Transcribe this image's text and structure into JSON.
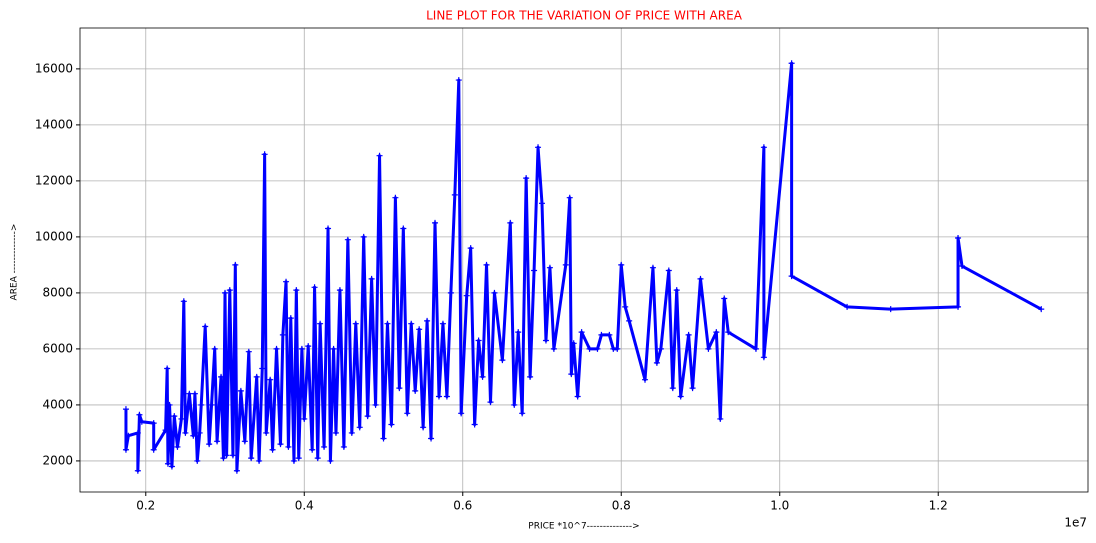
{
  "chart_data": {
    "type": "line",
    "title": "LINE PLOT FOR THE VARIATION OF PRICE WITH AREA",
    "xlabel": "PRICE *10^7-------------->",
    "ylabel": "AREA ------------->",
    "x_offset_label": "1e7",
    "color": "#0000ff",
    "title_color": "#ff0000",
    "grid": true,
    "xlim": [
      0.117,
      1.389
    ],
    "ylim": [
      890,
      17460
    ],
    "xticks": [
      0.2,
      0.4,
      0.6,
      0.8,
      {
        "value": 1,
        "label": "1.0"
      },
      1.2
    ],
    "yticks": [
      2000,
      4000,
      6000,
      8000,
      10000,
      12000,
      14000,
      16000
    ],
    "x": [
      0.175,
      0.175,
      0.178,
      0.19,
      0.19,
      0.192,
      0.195,
      0.21,
      0.21,
      0.225,
      0.227,
      0.228,
      0.23,
      0.233,
      0.236,
      0.24,
      0.245,
      0.248,
      0.25,
      0.255,
      0.26,
      0.262,
      0.265,
      0.268,
      0.27,
      0.275,
      0.28,
      0.283,
      0.287,
      0.29,
      0.295,
      0.298,
      0.3,
      0.302,
      0.306,
      0.31,
      0.313,
      0.315,
      0.32,
      0.325,
      0.33,
      0.333,
      0.34,
      0.343,
      0.347,
      0.35,
      0.352,
      0.357,
      0.36,
      0.365,
      0.37,
      0.373,
      0.377,
      0.38,
      0.383,
      0.387,
      0.39,
      0.393,
      0.397,
      0.4,
      0.405,
      0.41,
      0.413,
      0.417,
      0.42,
      0.425,
      0.43,
      0.433,
      0.437,
      0.44,
      0.445,
      0.45,
      0.455,
      0.46,
      0.465,
      0.47,
      0.475,
      0.48,
      0.485,
      0.49,
      0.495,
      0.5,
      0.505,
      0.51,
      0.515,
      0.52,
      0.525,
      0.53,
      0.535,
      0.54,
      0.545,
      0.55,
      0.555,
      0.56,
      0.565,
      0.57,
      0.575,
      0.58,
      0.585,
      0.59,
      0.595,
      0.598,
      0.605,
      0.61,
      0.615,
      0.62,
      0.625,
      0.63,
      0.635,
      0.64,
      0.65,
      0.66,
      0.665,
      0.67,
      0.675,
      0.68,
      0.685,
      0.69,
      0.695,
      0.7,
      0.705,
      0.71,
      0.715,
      0.73,
      0.735,
      0.737,
      0.74,
      0.745,
      0.75,
      0.76,
      0.77,
      0.775,
      0.785,
      0.79,
      0.795,
      0.8,
      0.805,
      0.81,
      0.83,
      0.84,
      0.845,
      0.85,
      0.86,
      0.865,
      0.87,
      0.875,
      0.885,
      0.89,
      0.9,
      0.91,
      0.92,
      0.925,
      0.93,
      0.935,
      0.97,
      0.98,
      0.98,
      1.015,
      1.015,
      1.085,
      1.14,
      1.225,
      1.225,
      1.23,
      1.33
    ],
    "series": [
      {
        "name": "AREA",
        "color": "#0000ff",
        "values": [
          3850,
          2400,
          2900,
          3000,
          1650,
          3650,
          3400,
          3350,
          2400,
          3100,
          5300,
          1900,
          4000,
          1800,
          3600,
          2500,
          3500,
          7700,
          3000,
          4400,
          2900,
          4400,
          2000,
          3000,
          4000,
          6800,
          2600,
          4000,
          6000,
          2700,
          5000,
          2100,
          8000,
          2200,
          8100,
          2200,
          9000,
          1650,
          4500,
          2700,
          5900,
          2100,
          5000,
          2000,
          5300,
          12950,
          3000,
          4900,
          2400,
          6000,
          2600,
          6500,
          8400,
          2500,
          7100,
          2000,
          8100,
          2100,
          6000,
          3500,
          6100,
          2400,
          8200,
          2100,
          6900,
          2500,
          10300,
          2000,
          6000,
          3000,
          8100,
          2500,
          9900,
          3000,
          6900,
          3200,
          10000,
          3600,
          8500,
          4000,
          12900,
          2800,
          6900,
          3300,
          11400,
          4600,
          10300,
          3700,
          6900,
          4500,
          6700,
          3200,
          7000,
          2800,
          10500,
          4300,
          6900,
          4300,
          8000,
          11500,
          15600,
          3700,
          7900,
          9600,
          3300,
          6300,
          5000,
          9000,
          4100,
          8000,
          5600,
          10500,
          4000,
          6600,
          3700,
          12100,
          5000,
          8800,
          13200,
          11200,
          6300,
          8900,
          6000,
          9000,
          11400,
          5100,
          6200,
          4300,
          6600,
          6000,
          6000,
          6500,
          6500,
          6000,
          6000,
          9000,
          7500,
          7000,
          4900,
          8900,
          5500,
          6000,
          8800,
          4600,
          8100,
          4300,
          6500,
          4600,
          8500,
          6000,
          6600,
          3500,
          7800,
          6600,
          6000,
          13200,
          5700,
          16200,
          8600,
          7500,
          7420,
          7500,
          9960,
          8960,
          7420
        ]
      }
    ]
  }
}
